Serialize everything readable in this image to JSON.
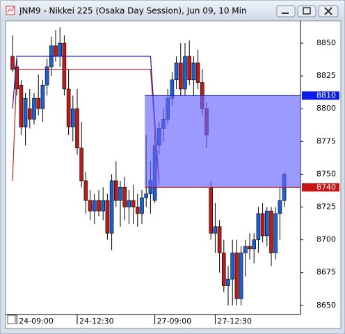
{
  "chart_data": {
    "type": "candlestick",
    "title": "JNM9 - Nikkei 225 (Osaka Day Session), Jun 09, 10 Min",
    "categories": [
      null,
      "24-09:00",
      null,
      null,
      null,
      null,
      null,
      null,
      null,
      null,
      null,
      null,
      null,
      null,
      null,
      "24-12:30",
      null,
      null,
      null,
      null,
      null,
      null,
      null,
      null,
      null,
      null,
      null,
      null,
      null,
      null,
      null,
      null,
      null,
      "27-09:00",
      null,
      null,
      null,
      null,
      null,
      null,
      null,
      null,
      null,
      null,
      null,
      null,
      null,
      "27-12:30",
      null,
      null,
      null,
      null,
      null,
      null,
      null,
      null,
      null,
      null,
      null,
      null,
      null,
      null,
      null,
      null
    ],
    "open": [
      8840,
      8832,
      8818,
      8786,
      8800,
      8792,
      8808,
      8800,
      8818,
      8832,
      8848,
      8840,
      8850,
      8815,
      8786,
      8800,
      8770,
      8745,
      8730,
      8722,
      8730,
      8722,
      8730,
      8705,
      8745,
      8730,
      8740,
      8725,
      8730,
      8725,
      8720,
      8732,
      8735,
      8730,
      8772,
      8785,
      8792,
      8808,
      8822,
      8835,
      8815,
      8840,
      8822,
      8835,
      8820,
      8800,
      8740,
      8705,
      8710,
      8690,
      8665,
      8670,
      8690,
      8655,
      8690,
      8695,
      8693,
      8700,
      8720,
      8703,
      8722,
      8690,
      8720,
      8730
    ],
    "high": [
      8856,
      8838,
      8822,
      8812,
      8815,
      8812,
      8826,
      8822,
      8838,
      8855,
      8860,
      8862,
      8856,
      8830,
      8810,
      8815,
      8790,
      8752,
      8738,
      8735,
      8738,
      8740,
      8735,
      8750,
      8760,
      8745,
      8748,
      8738,
      8742,
      8735,
      8738,
      8780,
      8760,
      8790,
      8790,
      8800,
      8815,
      8828,
      8840,
      8850,
      8850,
      8852,
      8840,
      8845,
      8830,
      8805,
      8745,
      8728,
      8715,
      8700,
      8680,
      8700,
      8700,
      8695,
      8700,
      8705,
      8705,
      8725,
      8728,
      8725,
      8725,
      8725,
      8740,
      8752
    ],
    "low": [
      8828,
      8810,
      8780,
      8772,
      8785,
      8788,
      8795,
      8790,
      8810,
      8825,
      8836,
      8832,
      8810,
      8780,
      8775,
      8765,
      8740,
      8720,
      8715,
      8712,
      8718,
      8715,
      8700,
      8692,
      8725,
      8710,
      8715,
      8712,
      8712,
      8710,
      8712,
      8725,
      8720,
      8728,
      8765,
      8775,
      8788,
      8802,
      8815,
      8810,
      8810,
      8818,
      8810,
      8815,
      8795,
      8770,
      8700,
      8690,
      8675,
      8660,
      8650,
      8650,
      8650,
      8650,
      8672,
      8685,
      8682,
      8690,
      8698,
      8695,
      8680,
      8685,
      8700,
      8725
    ],
    "close": [
      8830,
      8815,
      8786,
      8808,
      8792,
      8808,
      8800,
      8818,
      8832,
      8848,
      8840,
      8850,
      8815,
      8786,
      8800,
      8770,
      8745,
      8730,
      8722,
      8730,
      8722,
      8730,
      8705,
      8745,
      8730,
      8740,
      8725,
      8730,
      8725,
      8720,
      8732,
      8735,
      8745,
      8772,
      8785,
      8792,
      8808,
      8822,
      8835,
      8815,
      8840,
      8822,
      8835,
      8820,
      8800,
      8780,
      8705,
      8710,
      8690,
      8665,
      8670,
      8690,
      8655,
      8690,
      8695,
      8693,
      8700,
      8720,
      8703,
      8722,
      8690,
      8720,
      8730,
      8750
    ],
    "up_color": "#1f5fcf",
    "down_color": "#b81c1c",
    "lines": [
      {
        "color": "#1a1aa0",
        "values": [
          8800,
          8840,
          8840,
          8840,
          8840,
          8840,
          8840,
          8840,
          8840,
          8840,
          8840,
          8840,
          8840,
          8840,
          8840,
          8840,
          8840,
          8840,
          8840,
          8840,
          8840,
          8840,
          8840,
          8840,
          8840,
          8840,
          8840,
          8840,
          8840,
          8840,
          8840,
          8840,
          8840,
          8790,
          8745,
          null,
          null,
          null,
          null,
          null,
          null,
          null,
          null,
          null,
          null,
          null,
          null,
          null,
          null,
          null,
          null,
          null,
          null,
          null,
          null,
          null,
          null,
          null,
          null,
          null,
          null,
          null,
          null,
          null
        ]
      },
      {
        "color": "#c02020",
        "values": [
          8745,
          8830,
          8830,
          8830,
          8830,
          8830,
          8830,
          8830,
          8830,
          8830,
          8830,
          8830,
          8830,
          8830,
          8830,
          8830,
          8830,
          8830,
          8830,
          8830,
          8830,
          8830,
          8830,
          8830,
          8830,
          8830,
          8830,
          8830,
          8830,
          8830,
          8830,
          8830,
          8830,
          8785,
          8742,
          null,
          null,
          null,
          null,
          null,
          null,
          null,
          null,
          null,
          null,
          null,
          null,
          null,
          null,
          null,
          null,
          null,
          null,
          null,
          null,
          null,
          null,
          null,
          null,
          null,
          null,
          null,
          null,
          null
        ]
      }
    ],
    "zone": {
      "start": 31,
      "high": 8810,
      "low": 8740,
      "color": "#6464ff"
    },
    "markers": [
      {
        "value": 8810,
        "color": "#0a1ee8"
      },
      {
        "value": 8740,
        "color": "#c81414"
      }
    ],
    "ylim": [
      8643,
      8867
    ],
    "yticks": [
      8650,
      8675,
      8700,
      8725,
      8750,
      8775,
      8800,
      8825,
      8850
    ]
  }
}
